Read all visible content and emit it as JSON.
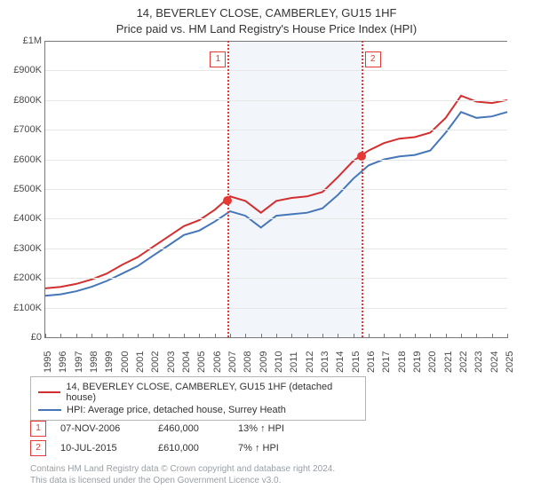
{
  "title1": "14, BEVERLEY CLOSE, CAMBERLEY, GU15 1HF",
  "title2": "Price paid vs. HM Land Registry's House Price Index (HPI)",
  "chart": {
    "type": "line",
    "background_color": "#ffffff",
    "grid_color": "#e6e6e6",
    "axis_color": "#777777",
    "shade_color": "#f2f6fb",
    "label_fontsize": 11,
    "title_fontsize": 13,
    "x": {
      "min": 1995,
      "max": 2025,
      "ticks": [
        1995,
        1996,
        1997,
        1998,
        1999,
        2000,
        2001,
        2002,
        2003,
        2004,
        2005,
        2006,
        2007,
        2008,
        2009,
        2010,
        2011,
        2012,
        2013,
        2014,
        2015,
        2016,
        2017,
        2018,
        2019,
        2020,
        2021,
        2022,
        2023,
        2024,
        2025
      ],
      "rotation": -90
    },
    "y": {
      "min": 0,
      "max": 1000000,
      "ticks": [
        0,
        100000,
        200000,
        300000,
        400000,
        500000,
        600000,
        700000,
        800000,
        900000,
        1000000
      ],
      "tick_labels": [
        "£0",
        "£100K",
        "£200K",
        "£300K",
        "£400K",
        "£500K",
        "£600K",
        "£700K",
        "£800K",
        "£900K",
        "£1M"
      ]
    },
    "series": [
      {
        "name": "14, BEVERLEY CLOSE, CAMBERLEY, GU15 1HF (detached house)",
        "color": "#d32f2f",
        "line_width": 2,
        "points": [
          [
            1995,
            165000
          ],
          [
            1996,
            170000
          ],
          [
            1997,
            180000
          ],
          [
            1998,
            195000
          ],
          [
            1999,
            215000
          ],
          [
            2000,
            245000
          ],
          [
            2001,
            270000
          ],
          [
            2002,
            305000
          ],
          [
            2003,
            340000
          ],
          [
            2004,
            375000
          ],
          [
            2005,
            395000
          ],
          [
            2006,
            430000
          ],
          [
            2007,
            475000
          ],
          [
            2008,
            460000
          ],
          [
            2009,
            420000
          ],
          [
            2010,
            460000
          ],
          [
            2011,
            470000
          ],
          [
            2012,
            475000
          ],
          [
            2013,
            490000
          ],
          [
            2014,
            540000
          ],
          [
            2015,
            595000
          ],
          [
            2016,
            630000
          ],
          [
            2017,
            655000
          ],
          [
            2018,
            670000
          ],
          [
            2019,
            675000
          ],
          [
            2020,
            690000
          ],
          [
            2021,
            740000
          ],
          [
            2022,
            815000
          ],
          [
            2023,
            795000
          ],
          [
            2024,
            790000
          ],
          [
            2025,
            800000
          ]
        ]
      },
      {
        "name": "HPI: Average price, detached house, Surrey Heath",
        "color": "#4576b8",
        "line_width": 2,
        "points": [
          [
            1995,
            140000
          ],
          [
            1996,
            145000
          ],
          [
            1997,
            155000
          ],
          [
            1998,
            170000
          ],
          [
            1999,
            190000
          ],
          [
            2000,
            215000
          ],
          [
            2001,
            240000
          ],
          [
            2002,
            275000
          ],
          [
            2003,
            310000
          ],
          [
            2004,
            345000
          ],
          [
            2005,
            360000
          ],
          [
            2006,
            390000
          ],
          [
            2007,
            425000
          ],
          [
            2008,
            410000
          ],
          [
            2009,
            370000
          ],
          [
            2010,
            410000
          ],
          [
            2011,
            415000
          ],
          [
            2012,
            420000
          ],
          [
            2013,
            435000
          ],
          [
            2014,
            480000
          ],
          [
            2015,
            535000
          ],
          [
            2016,
            580000
          ],
          [
            2017,
            600000
          ],
          [
            2018,
            610000
          ],
          [
            2019,
            615000
          ],
          [
            2020,
            630000
          ],
          [
            2021,
            690000
          ],
          [
            2022,
            760000
          ],
          [
            2023,
            740000
          ],
          [
            2024,
            745000
          ],
          [
            2025,
            760000
          ]
        ]
      }
    ],
    "sales": [
      {
        "index": "1",
        "date_label": "07-NOV-2006",
        "x": 2006.85,
        "price": 460000,
        "price_label": "£460,000",
        "diff_pct": 13,
        "diff_dir": "up",
        "diff_ref": "HPI"
      },
      {
        "index": "2",
        "date_label": "10-JUL-2015",
        "x": 2015.52,
        "price": 610000,
        "price_label": "£610,000",
        "diff_pct": 7,
        "diff_dir": "up",
        "diff_ref": "HPI"
      }
    ],
    "shade_range": [
      2006.85,
      2015.52
    ]
  },
  "legend_lines": [
    {
      "color": "#d32f2f",
      "label": "14, BEVERLEY CLOSE, CAMBERLEY, GU15 1HF (detached house)"
    },
    {
      "color": "#4576b8",
      "label": "HPI: Average price, detached house, Surrey Heath"
    }
  ],
  "footer_line1": "Contains HM Land Registry data © Crown copyright and database right 2024.",
  "footer_line2": "This data is licensed under the Open Government Licence v3.0."
}
